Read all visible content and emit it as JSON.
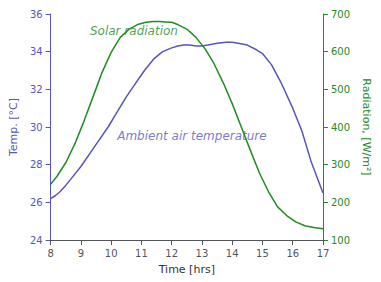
{
  "chart_data": {
    "type": "line",
    "xlabel": "Time [hrs]",
    "ylabel": "Temp. [°C]",
    "y2label": "Radiation, [W/m²]",
    "xlim": [
      8,
      17
    ],
    "xticks": [
      8,
      9,
      10,
      11,
      12,
      13,
      14,
      15,
      16,
      17
    ],
    "ylim": [
      24,
      36
    ],
    "yticks": [
      24,
      26,
      28,
      30,
      32,
      34,
      36
    ],
    "y2lim": [
      100,
      700
    ],
    "y2ticks": [
      100,
      200,
      300,
      400,
      500,
      600,
      700
    ],
    "grid": false,
    "series": [
      {
        "color": "#5555bb",
        "x": [
          8.0,
          8.15,
          8.3,
          8.5,
          8.7,
          9.0,
          9.3,
          9.6,
          9.9,
          10.2,
          10.5,
          10.8,
          11.1,
          11.4,
          11.7,
          12.0,
          12.2,
          12.4,
          12.6,
          12.8,
          13.0,
          13.2,
          13.5,
          13.8,
          14.0,
          14.2,
          14.5,
          14.8,
          15.0,
          15.3,
          15.6,
          16.0,
          16.3,
          16.6,
          17.0
        ],
        "values": [
          26.2,
          26.35,
          26.55,
          26.9,
          27.3,
          27.9,
          28.6,
          29.3,
          30.0,
          30.8,
          31.6,
          32.3,
          33.0,
          33.6,
          34.0,
          34.2,
          34.3,
          34.35,
          34.35,
          34.3,
          34.3,
          34.35,
          34.45,
          34.5,
          34.5,
          34.45,
          34.35,
          34.1,
          33.9,
          33.3,
          32.4,
          31.0,
          29.8,
          28.2,
          26.5
        ]
      },
      {
        "color": "#228B22",
        "axis": "y2",
        "x": [
          8.0,
          8.2,
          8.5,
          8.8,
          9.1,
          9.4,
          9.7,
          10.0,
          10.3,
          10.6,
          10.9,
          11.15,
          11.4,
          11.6,
          11.8,
          12.0,
          12.2,
          12.5,
          12.8,
          13.1,
          13.4,
          13.7,
          14.0,
          14.3,
          14.6,
          14.9,
          15.2,
          15.5,
          15.8,
          16.1,
          16.4,
          16.7,
          17.0
        ],
        "values": [
          248,
          268,
          305,
          355,
          415,
          480,
          545,
          598,
          638,
          660,
          673,
          678,
          680,
          680,
          679,
          678,
          672,
          660,
          638,
          608,
          568,
          518,
          462,
          400,
          338,
          278,
          228,
          188,
          165,
          148,
          138,
          133,
          130
        ]
      }
    ],
    "annotations": [
      {
        "text": "Solar radiation",
        "x": 9.3,
        "y": 35.1,
        "color": "#228B22"
      },
      {
        "text": "Ambient air temperature",
        "x": 10.2,
        "y": 29.5,
        "color": "#5555bb"
      }
    ]
  }
}
